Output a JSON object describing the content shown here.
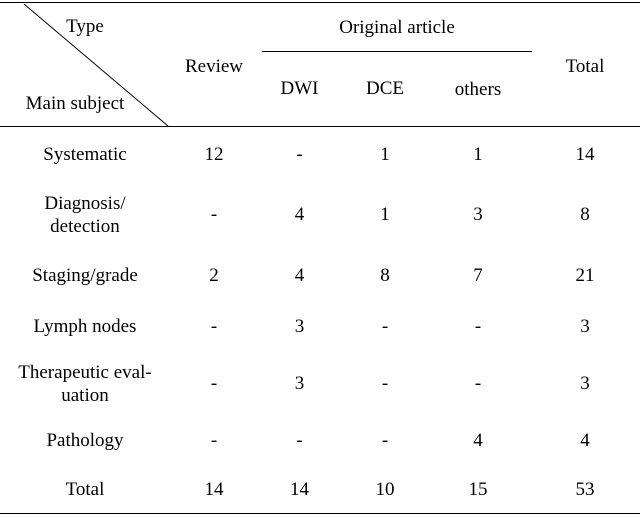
{
  "header": {
    "corner_top": "Type",
    "corner_bottom": "Main subject",
    "review": "Review",
    "original_article": "Original article",
    "dwi": "DWI",
    "dce": "DCE",
    "others": "others",
    "total": "Total"
  },
  "rows": [
    {
      "subject": "Systematic",
      "review": "12",
      "dwi": "-",
      "dce": "1",
      "others": "1",
      "total": "14"
    },
    {
      "subject_line1": "Diagnosis/",
      "subject_line2": "detection",
      "review": "-",
      "dwi": "4",
      "dce": "1",
      "others": "3",
      "total": "8"
    },
    {
      "subject": "Staging/grade",
      "review": "2",
      "dwi": "4",
      "dce": "8",
      "others": "7",
      "total": "21"
    },
    {
      "subject": "Lymph nodes",
      "review": "-",
      "dwi": "3",
      "dce": "-",
      "others": "-",
      "total": "3"
    },
    {
      "subject_line1": "Therapeutic eval-",
      "subject_line2": "uation",
      "review": "-",
      "dwi": "3",
      "dce": "-",
      "others": "-",
      "total": "3"
    },
    {
      "subject": "Pathology",
      "review": "-",
      "dwi": "-",
      "dce": "-",
      "others": "4",
      "total": "4"
    },
    {
      "subject": "Total",
      "review": "14",
      "dwi": "14",
      "dce": "10",
      "others": "15",
      "total": "53"
    }
  ]
}
